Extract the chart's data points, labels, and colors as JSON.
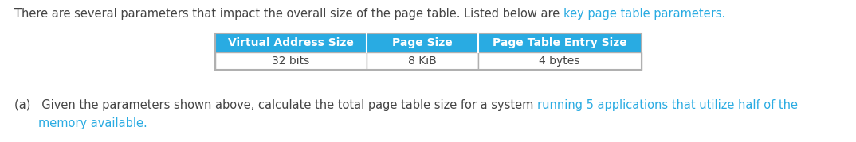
{
  "intro_normal": "There are several parameters that impact the overall size of the page table. Listed below are ",
  "intro_blue": "key page table parameters.",
  "table_headers": [
    "Virtual Address Size",
    "Page Size",
    "Page Table Entry Size"
  ],
  "table_values": [
    "32 bits",
    "8 KiB",
    "4 bytes"
  ],
  "header_bg_color": "#29abe2",
  "header_text_color": "#ffffff",
  "cell_bg_color": "#ffffff",
  "cell_text_color": "#444444",
  "table_border_color": "#b0b0b0",
  "color_normal": "#444444",
  "color_blue": "#29abe2",
  "bg_color": "#ffffff",
  "font_family": "DejaVu Sans",
  "fontsize": 10.5,
  "table_header_fontsize": 10,
  "table_value_fontsize": 10,
  "fig_width": 10.74,
  "fig_height": 1.79,
  "dpi": 100,
  "part_a_seg1": "(a)   Given the parameters shown above, calculate the total page table size for a system ",
  "part_a_seg2": "running 5 applications that utilize half of the",
  "part_a_line2_indent": "       ",
  "part_a_line2_blue": "memory available."
}
